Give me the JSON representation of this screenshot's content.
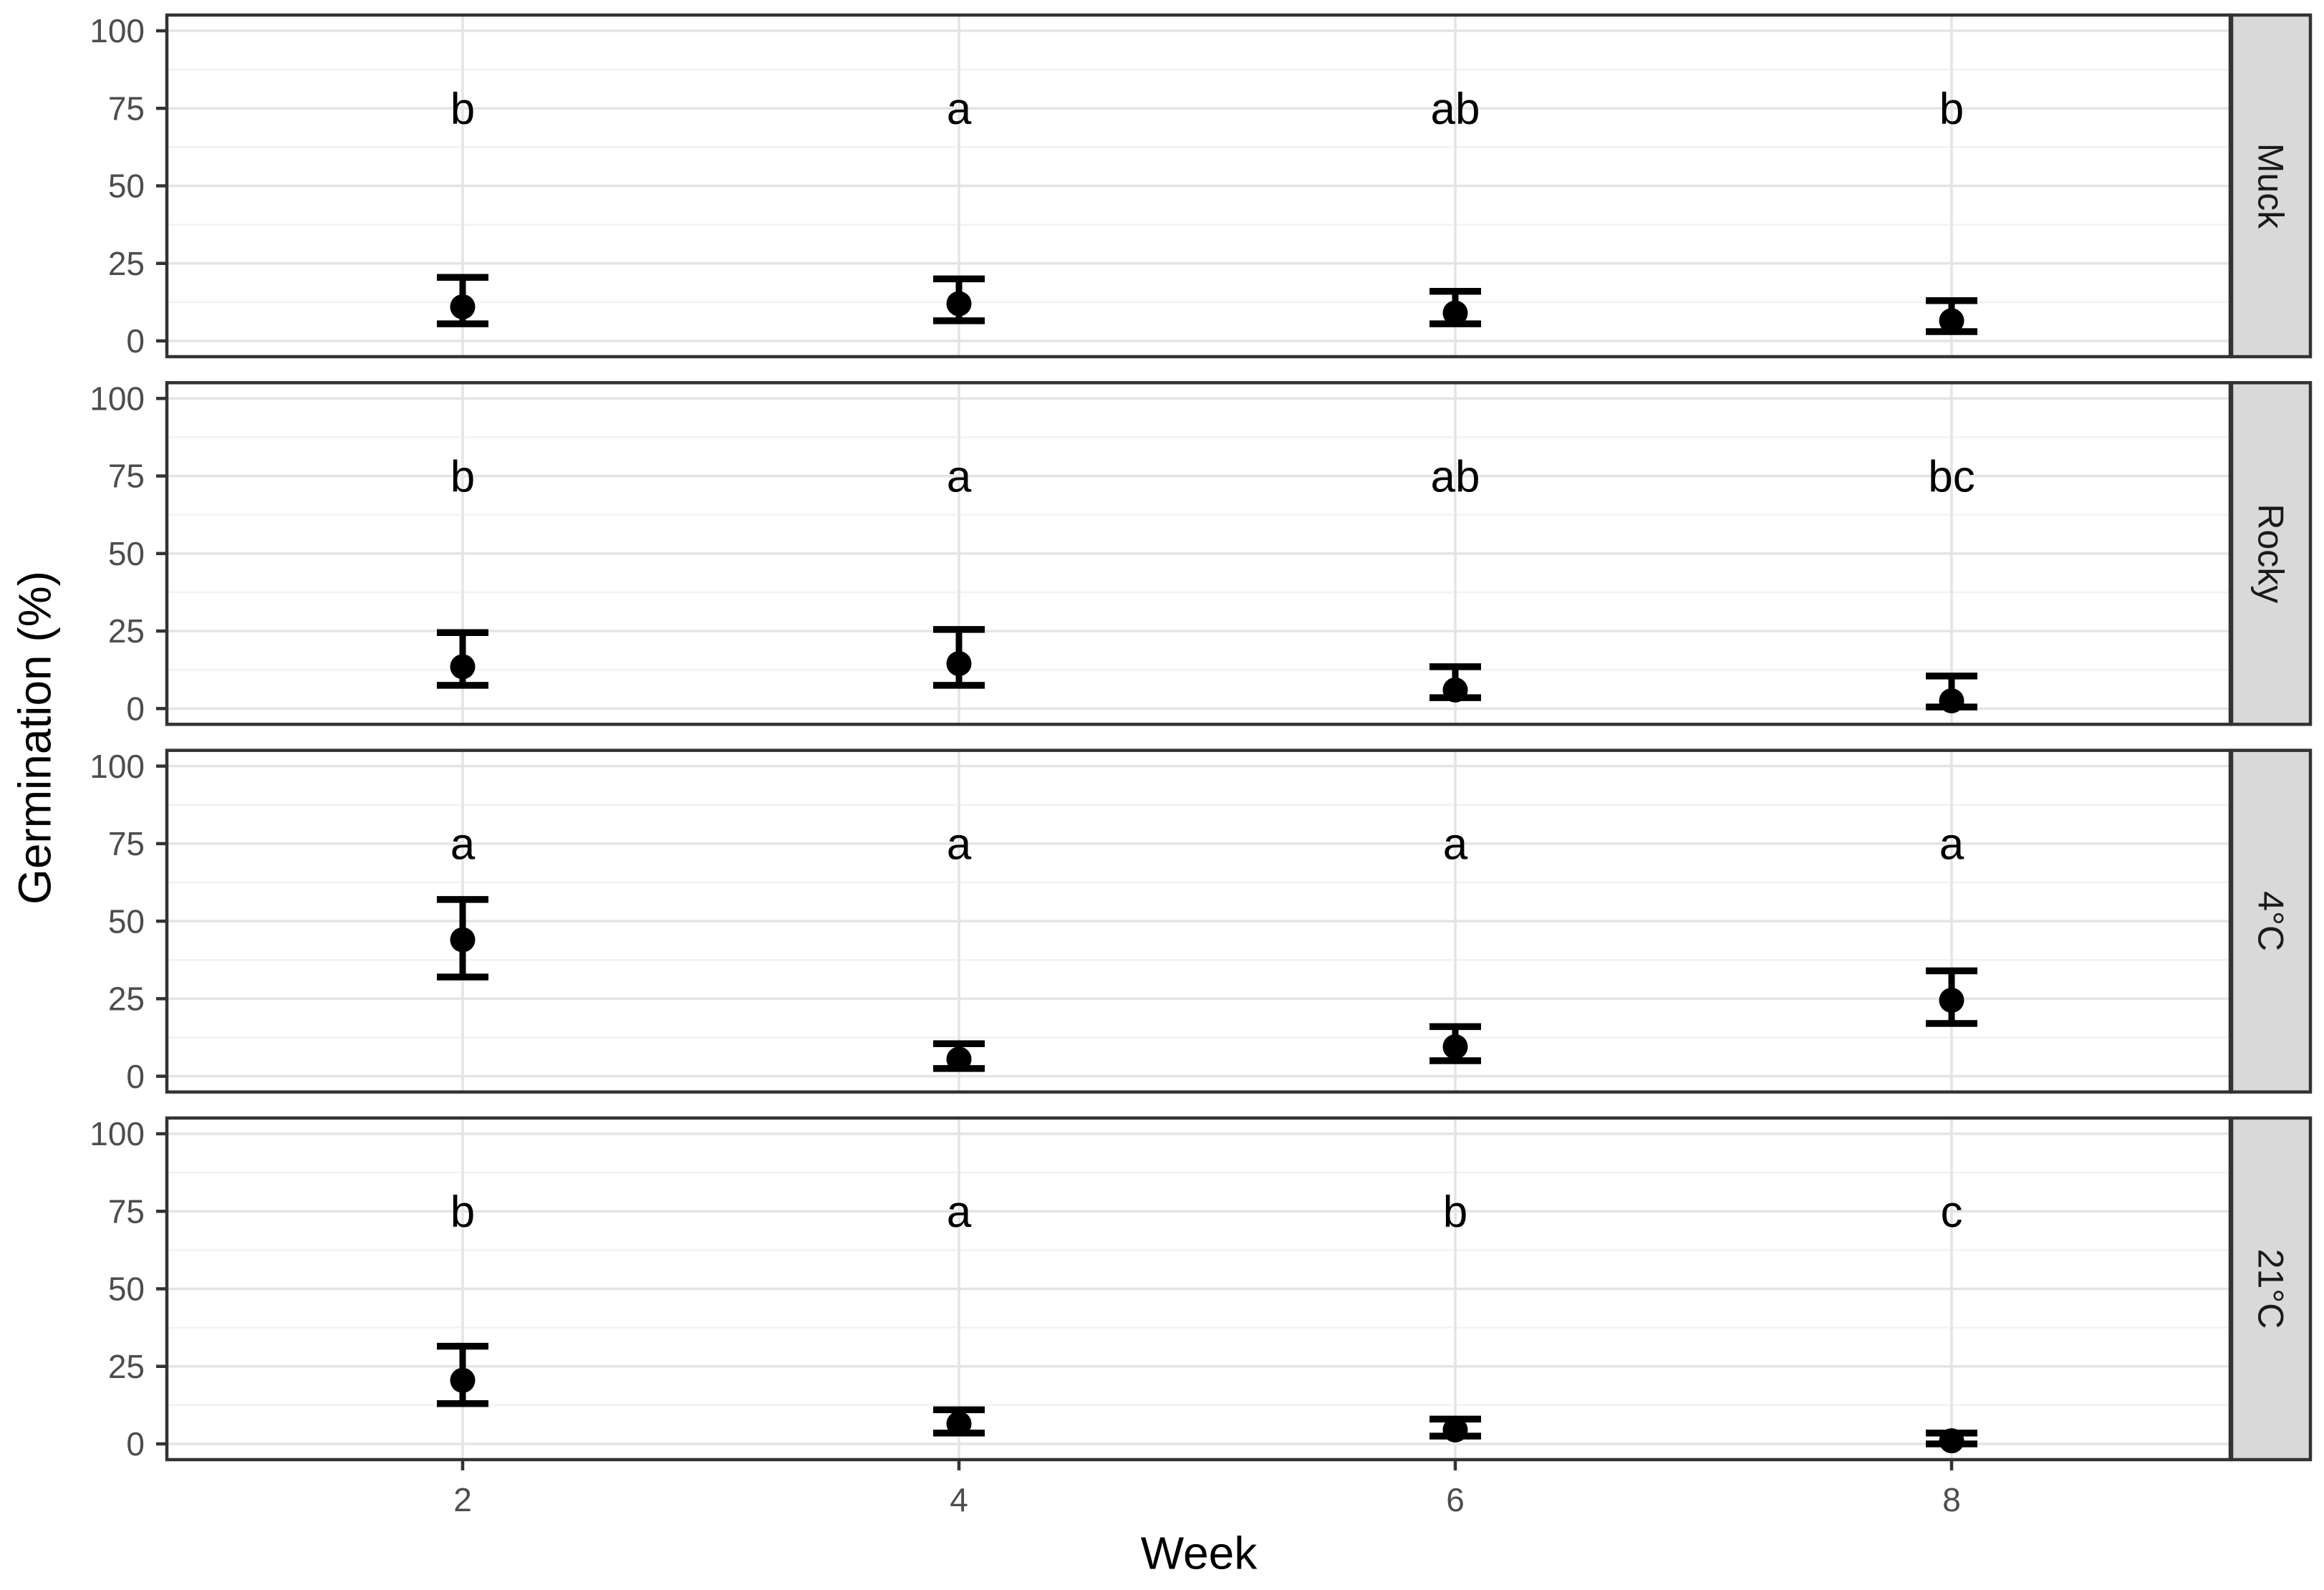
{
  "chart_data": {
    "type": "scatter",
    "subtype": "faceted-pointrange-with-ci",
    "title": "",
    "xlabel": "Week",
    "ylabel": "Germination (%)",
    "x": [
      2,
      4,
      6,
      8
    ],
    "ylim": [
      0,
      100
    ],
    "yticks": [
      0,
      25,
      50,
      75,
      100
    ],
    "y_minor_gridlines": [
      12.5,
      37.5,
      62.5,
      87.5
    ],
    "letter_y": 75,
    "grid": "horizontal major+minor, vertical major at week positions",
    "legend_position": "none",
    "facet_position": "right-strip, rotated 90deg",
    "facets": [
      {
        "label": "Muck",
        "series": [
          {
            "week": 2,
            "mean": 11,
            "ci_low": 5.5,
            "ci_high": 20.5,
            "letter": "b"
          },
          {
            "week": 4,
            "mean": 12,
            "ci_low": 6.5,
            "ci_high": 20,
            "letter": "a"
          },
          {
            "week": 6,
            "mean": 9,
            "ci_low": 5.5,
            "ci_high": 16,
            "letter": "ab"
          },
          {
            "week": 8,
            "mean": 6.5,
            "ci_low": 3,
            "ci_high": 13,
            "letter": "b"
          }
        ]
      },
      {
        "label": "Rocky",
        "series": [
          {
            "week": 2,
            "mean": 13.5,
            "ci_low": 7.5,
            "ci_high": 24.5,
            "letter": "b"
          },
          {
            "week": 4,
            "mean": 14.5,
            "ci_low": 7.5,
            "ci_high": 25.5,
            "letter": "a"
          },
          {
            "week": 6,
            "mean": 6,
            "ci_low": 3.5,
            "ci_high": 13.5,
            "letter": "ab"
          },
          {
            "week": 8,
            "mean": 2.5,
            "ci_low": 0.5,
            "ci_high": 10.5,
            "letter": "bc"
          }
        ]
      },
      {
        "label": "4°C",
        "series": [
          {
            "week": 2,
            "mean": 44,
            "ci_low": 32,
            "ci_high": 57,
            "letter": "a"
          },
          {
            "week": 4,
            "mean": 5.5,
            "ci_low": 2.5,
            "ci_high": 10.5,
            "letter": "a"
          },
          {
            "week": 6,
            "mean": 9.5,
            "ci_low": 5,
            "ci_high": 16,
            "letter": "a"
          },
          {
            "week": 8,
            "mean": 24.5,
            "ci_low": 17,
            "ci_high": 34,
            "letter": "a"
          }
        ]
      },
      {
        "label": "21°C",
        "series": [
          {
            "week": 2,
            "mean": 20.5,
            "ci_low": 13,
            "ci_high": 31.5,
            "letter": "b"
          },
          {
            "week": 4,
            "mean": 6.5,
            "ci_low": 3.5,
            "ci_high": 11,
            "letter": "a"
          },
          {
            "week": 6,
            "mean": 4.5,
            "ci_low": 2.5,
            "ci_high": 8,
            "letter": "b"
          },
          {
            "week": 8,
            "mean": 1,
            "ci_low": 0,
            "ci_high": 3.5,
            "letter": "c"
          }
        ]
      }
    ]
  },
  "styles": {
    "point_color": "#000000",
    "grid_major_color": "#e4e4e4",
    "grid_minor_color": "#f2f2f2",
    "panel_border_color": "#333333",
    "tick_mark_color": "#333333",
    "strip_bg_color": "#d9d9d9",
    "strip_text_color": "#1a1a1a",
    "axis_text_color": "#4d4d4d",
    "axis_title_color": "#000000",
    "panel_bg_color": "#ffffff",
    "page_bg_color": "#ffffff"
  }
}
